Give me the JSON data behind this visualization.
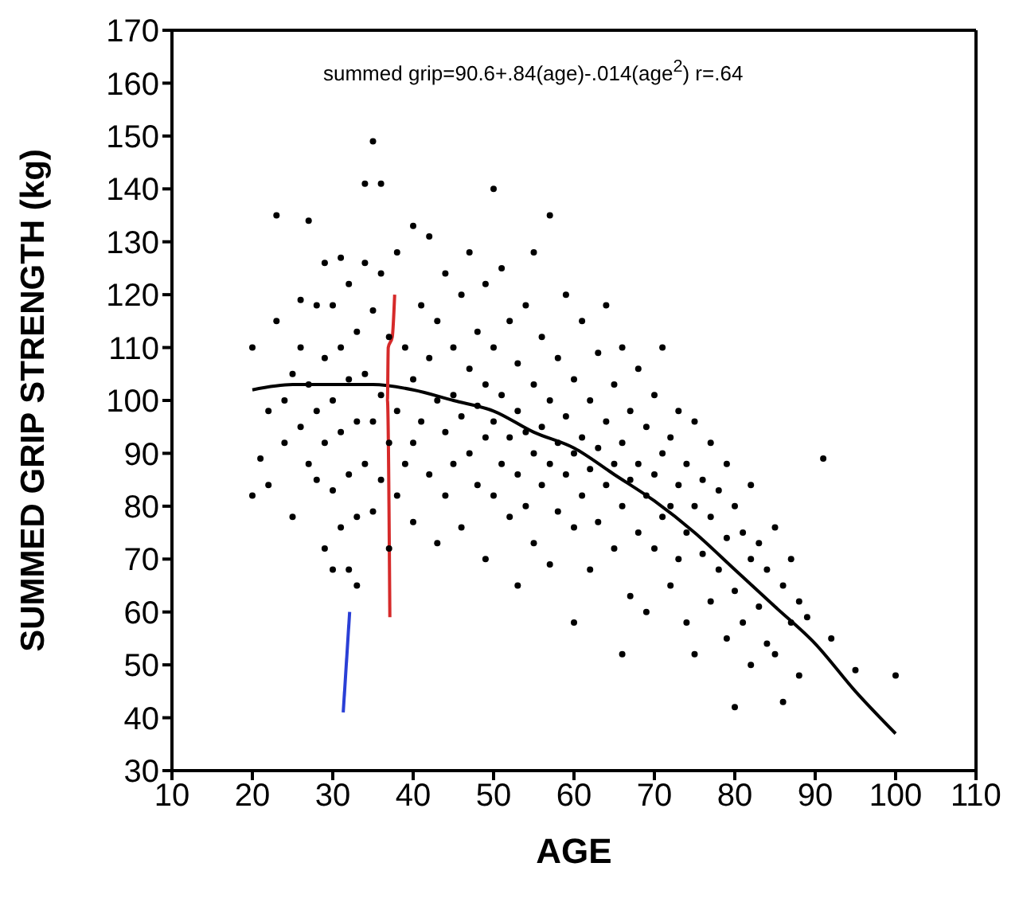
{
  "chart_data": {
    "type": "scatter",
    "xlabel": "AGE",
    "ylabel": "SUMMED GRIP STRENGTH (kg)",
    "annotations": [
      "summed grip=90.6+.84(age)-.014(age$^{2}$) r=.64"
    ],
    "xlim": [
      10,
      110
    ],
    "xticks": [
      10,
      20,
      30,
      40,
      50,
      60,
      70,
      80,
      90,
      100,
      110
    ],
    "ylim": [
      30,
      170
    ],
    "yticks": [
      30,
      40,
      50,
      60,
      70,
      80,
      90,
      100,
      110,
      120,
      130,
      140,
      150,
      160,
      170
    ],
    "series": [
      {
        "color": "#000000",
        "marker": "circle",
        "x": [
          20,
          20,
          21,
          22,
          22,
          23,
          23,
          24,
          24,
          25,
          25,
          26,
          26,
          26,
          27,
          27,
          27,
          28,
          28,
          28,
          29,
          29,
          29,
          29,
          30,
          30,
          30,
          30,
          31,
          31,
          31,
          31,
          32,
          32,
          32,
          32,
          33,
          33,
          33,
          33,
          34,
          34,
          34,
          34,
          35,
          35,
          35,
          35,
          36,
          36,
          36,
          36,
          37,
          37,
          37,
          38,
          38,
          38,
          39,
          39,
          40,
          40,
          40,
          40,
          41,
          41,
          42,
          42,
          42,
          43,
          43,
          43,
          44,
          44,
          44,
          45,
          45,
          45,
          46,
          46,
          46,
          47,
          47,
          47,
          48,
          48,
          48,
          49,
          49,
          49,
          49,
          50,
          50,
          50,
          50,
          51,
          51,
          51,
          52,
          52,
          52,
          53,
          53,
          53,
          53,
          54,
          54,
          54,
          55,
          55,
          55,
          55,
          56,
          56,
          56,
          57,
          57,
          57,
          57,
          58,
          58,
          58,
          59,
          59,
          59,
          60,
          60,
          60,
          60,
          61,
          61,
          61,
          62,
          62,
          62,
          63,
          63,
          63,
          64,
          64,
          64,
          65,
          65,
          65,
          66,
          66,
          66,
          66,
          67,
          67,
          67,
          68,
          68,
          68,
          69,
          69,
          69,
          70,
          70,
          70,
          71,
          71,
          71,
          72,
          72,
          72,
          73,
          73,
          73,
          74,
          74,
          74,
          75,
          75,
          75,
          76,
          76,
          77,
          77,
          77,
          78,
          78,
          79,
          79,
          79,
          80,
          80,
          80,
          81,
          81,
          82,
          82,
          82,
          83,
          83,
          84,
          84,
          85,
          85,
          86,
          86,
          87,
          87,
          88,
          88,
          89,
          91,
          92,
          95,
          100
        ],
        "values": [
          82,
          110,
          89,
          98,
          84,
          115,
          135,
          100,
          92,
          105,
          78,
          110,
          95,
          119,
          134,
          88,
          103,
          118,
          85,
          98,
          126,
          108,
          72,
          92,
          118,
          100,
          83,
          68,
          127,
          110,
          94,
          76,
          68,
          122,
          104,
          86,
          65,
          96,
          113,
          78,
          141,
          105,
          88,
          126,
          149,
          117,
          96,
          79,
          141,
          124,
          101,
          85,
          112,
          92,
          72,
          128,
          98,
          82,
          110,
          88,
          133,
          104,
          92,
          77,
          118,
          96,
          131,
          108,
          86,
          100,
          115,
          73,
          124,
          94,
          82,
          110,
          101,
          88,
          120,
          97,
          76,
          128,
          106,
          90,
          113,
          99,
          84,
          122,
          103,
          93,
          70,
          140,
          110,
          96,
          82,
          125,
          101,
          88,
          115,
          93,
          78,
          107,
          98,
          86,
          65,
          118,
          94,
          80,
          128,
          103,
          90,
          73,
          112,
          95,
          84,
          135,
          100,
          88,
          69,
          108,
          92,
          79,
          120,
          97,
          86,
          104,
          90,
          76,
          58,
          115,
          93,
          82,
          100,
          87,
          68,
          109,
          91,
          77,
          118,
          96,
          84,
          103,
          88,
          72,
          110,
          92,
          80,
          52,
          98,
          85,
          63,
          106,
          88,
          75,
          95,
          82,
          60,
          101,
          86,
          72,
          110,
          90,
          78,
          93,
          80,
          65,
          98,
          84,
          70,
          88,
          75,
          58,
          96,
          80,
          52,
          85,
          71,
          92,
          78,
          62,
          83,
          68,
          88,
          74,
          55,
          80,
          64,
          42,
          75,
          58,
          84,
          70,
          50,
          73,
          61,
          68,
          54,
          76,
          52,
          65,
          43,
          70,
          58,
          62,
          48,
          59,
          89,
          55,
          49,
          48
        ]
      },
      {
        "type": "line",
        "color": "#000000",
        "marker": "none",
        "x": [
          20,
          25,
          30,
          35,
          40,
          45,
          50,
          55,
          60,
          65,
          70,
          75,
          80,
          85,
          90,
          95,
          100
        ],
        "values": [
          102,
          103,
          103,
          103,
          102,
          100,
          98,
          94,
          91,
          86,
          81,
          75,
          68,
          61,
          54,
          45,
          37
        ]
      },
      {
        "type": "line",
        "color": "#d62a2a",
        "marker": "none",
        "x": [
          37.7,
          37.4,
          36.9,
          36.8,
          37.1
        ],
        "values": [
          120,
          112,
          110,
          100,
          59
        ]
      },
      {
        "type": "line",
        "color": "#2a3fd6",
        "marker": "none",
        "x": [
          31.3,
          32.1
        ],
        "values": [
          41,
          60
        ]
      }
    ]
  }
}
